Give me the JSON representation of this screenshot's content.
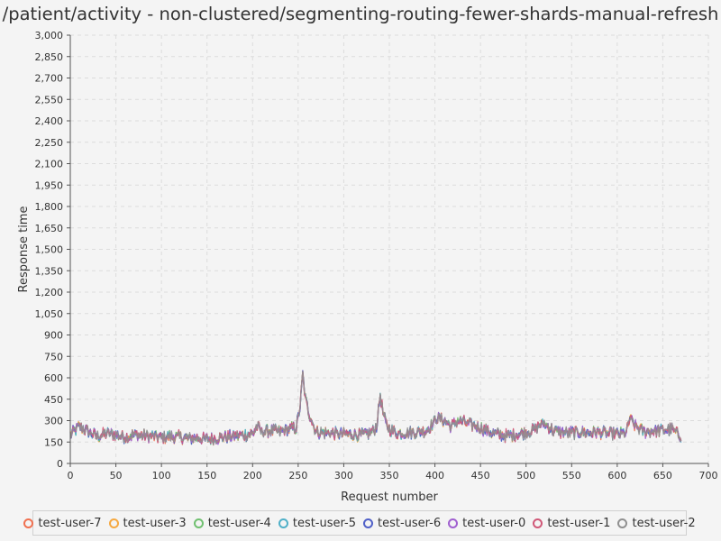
{
  "chart_data": {
    "type": "line",
    "title": "/patient/activity - non-clustered/segmenting-routing-fewer-shards-manual-refresh",
    "xlabel": "Request number",
    "ylabel": "Response time",
    "xlim": [
      0,
      700
    ],
    "ylim": [
      0,
      3000
    ],
    "xticks": [
      0,
      50,
      100,
      150,
      200,
      250,
      300,
      350,
      400,
      450,
      500,
      550,
      600,
      650,
      700
    ],
    "yticks": [
      0,
      150,
      300,
      450,
      600,
      750,
      900,
      1050,
      1200,
      1350,
      1500,
      1650,
      1800,
      1950,
      2100,
      2250,
      2400,
      2550,
      2700,
      2850,
      3000
    ],
    "xtick_labels": [
      "0",
      "50",
      "100",
      "150",
      "200",
      "250",
      "300",
      "350",
      "400",
      "450",
      "500",
      "550",
      "600",
      "650",
      "700"
    ],
    "ytick_labels": [
      "0",
      "150",
      "300",
      "450",
      "600",
      "750",
      "900",
      "1,050",
      "1,200",
      "1,350",
      "1,500",
      "1,650",
      "1,800",
      "1,950",
      "2,100",
      "2,250",
      "2,400",
      "2,550",
      "2,700",
      "2,850",
      "3,000"
    ],
    "grid": true,
    "legend_position": "bottom",
    "x_count": 670,
    "profile_x": [
      0,
      10,
      20,
      30,
      40,
      50,
      60,
      70,
      80,
      90,
      100,
      110,
      120,
      130,
      140,
      150,
      160,
      170,
      180,
      190,
      200,
      205,
      210,
      220,
      230,
      240,
      248,
      252,
      255,
      258,
      262,
      266,
      270,
      280,
      290,
      300,
      310,
      320,
      330,
      336,
      340,
      343,
      346,
      350,
      360,
      370,
      380,
      390,
      398,
      402,
      410,
      418,
      425,
      432,
      440,
      450,
      460,
      470,
      480,
      490,
      500,
      510,
      515,
      520,
      530,
      540,
      550,
      560,
      570,
      580,
      590,
      600,
      610,
      614,
      618,
      625,
      630,
      640,
      650,
      660,
      670
    ],
    "profile_y": [
      200,
      260,
      220,
      190,
      210,
      200,
      185,
      200,
      195,
      190,
      180,
      190,
      185,
      175,
      180,
      170,
      175,
      185,
      190,
      200,
      210,
      260,
      220,
      230,
      220,
      240,
      250,
      400,
      620,
      450,
      350,
      280,
      220,
      215,
      210,
      205,
      205,
      200,
      215,
      260,
      480,
      360,
      280,
      240,
      210,
      215,
      220,
      230,
      280,
      320,
      300,
      260,
      300,
      290,
      270,
      250,
      220,
      200,
      195,
      205,
      215,
      240,
      270,
      280,
      230,
      215,
      215,
      220,
      215,
      220,
      210,
      205,
      215,
      320,
      270,
      240,
      220,
      230,
      230,
      240,
      190
    ],
    "noise": 35,
    "series": [
      {
        "name": "test-user-7",
        "color": "#f07050"
      },
      {
        "name": "test-user-3",
        "color": "#f5a840"
      },
      {
        "name": "test-user-4",
        "color": "#70c070"
      },
      {
        "name": "test-user-5",
        "color": "#50b0c8"
      },
      {
        "name": "test-user-6",
        "color": "#5060c8"
      },
      {
        "name": "test-user-0",
        "color": "#a060d0"
      },
      {
        "name": "test-user-1",
        "color": "#d05878"
      },
      {
        "name": "test-user-2",
        "color": "#909090"
      }
    ]
  }
}
